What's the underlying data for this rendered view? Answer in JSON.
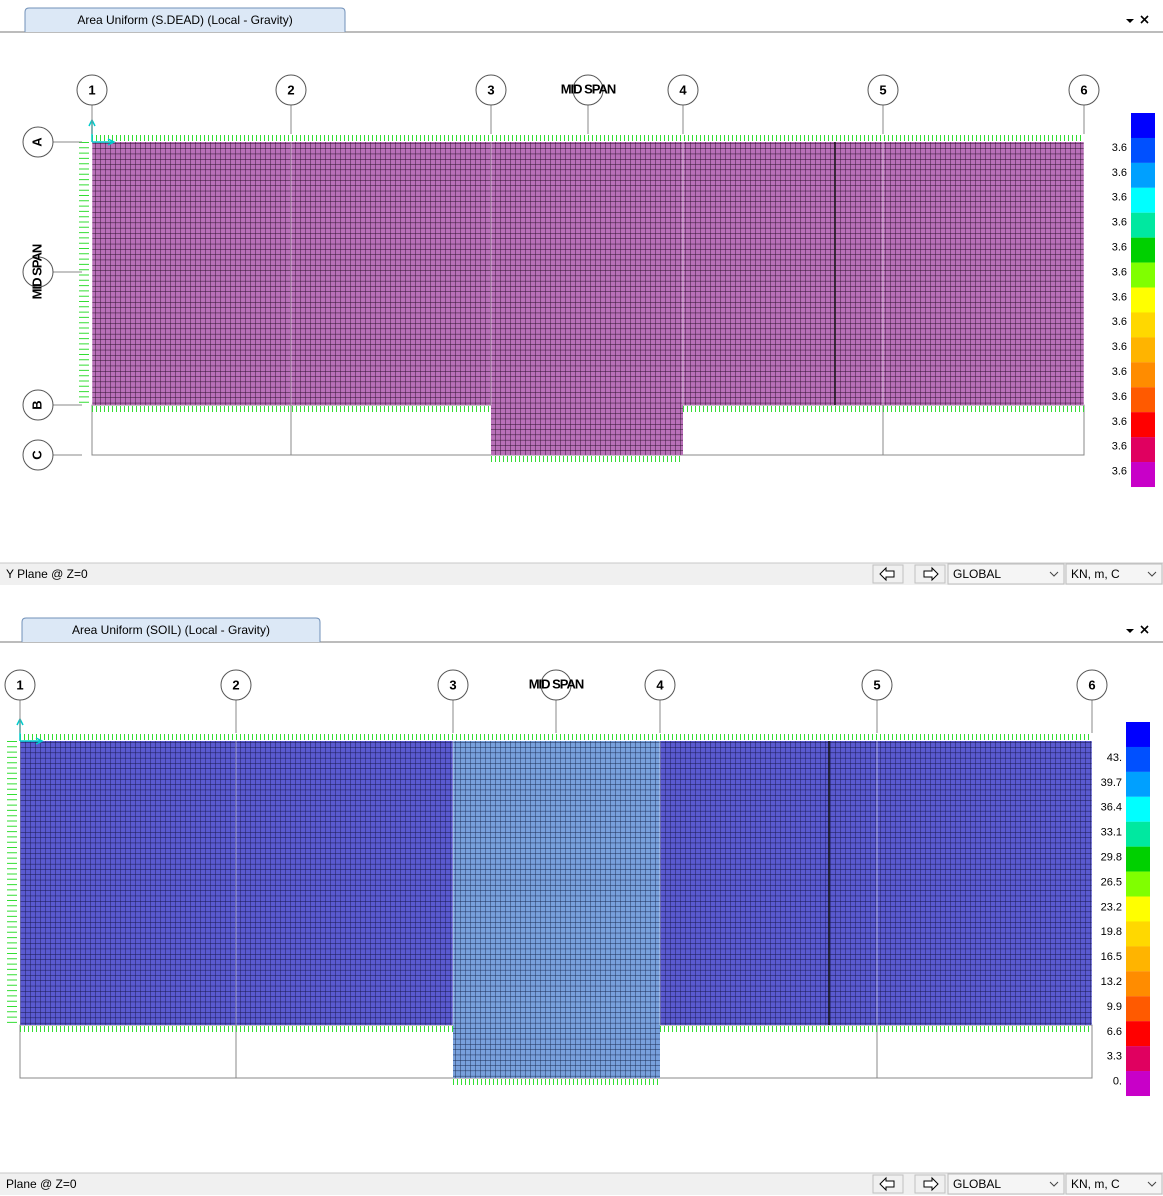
{
  "panels": [
    {
      "tab_title": "Area Uniform (S.DEAD) (Local - Gravity)",
      "grid_lines": [
        "1",
        "2",
        "3",
        "4",
        "5",
        "6"
      ],
      "mid_span_label": "MID SPAN",
      "row_labels": [
        "A",
        "B",
        "C"
      ],
      "side_label": "MID SPAN",
      "legend_labels": [
        "3.6",
        "3.6",
        "3.6",
        "3.6",
        "3.6",
        "3.6",
        "3.6",
        "3.6",
        "3.6",
        "3.6",
        "3.6",
        "3.6",
        "3.6",
        "3.6"
      ],
      "status": "Y Plane @ Z=0",
      "coord_system": "GLOBAL",
      "units": "KN, m, C"
    },
    {
      "tab_title": "Area Uniform (SOIL) (Local - Gravity)",
      "grid_lines": [
        "1",
        "2",
        "3",
        "4",
        "5",
        "6"
      ],
      "mid_span_label": "MID SPAN",
      "legend_labels": [
        "43.",
        "39.7",
        "36.4",
        "33.1",
        "29.8",
        "26.5",
        "23.2",
        "19.8",
        "16.5",
        "13.2",
        "9.9",
        "6.6",
        "3.3",
        "0."
      ],
      "status": "Plane @ Z=0",
      "coord_system": "GLOBAL",
      "units": "KN, m, C"
    }
  ]
}
